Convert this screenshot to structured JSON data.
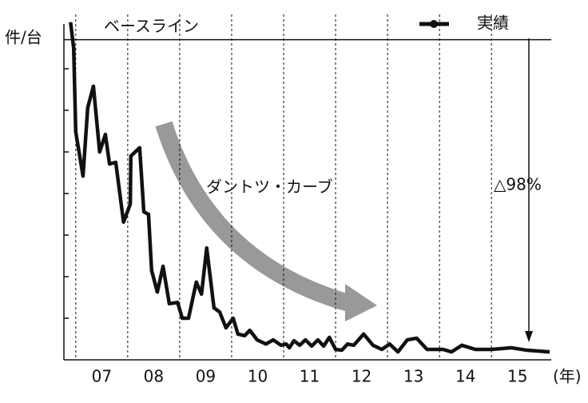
{
  "chart_data": {
    "type": "line",
    "y_label": "件/台",
    "x_label": "(年)",
    "baseline": {
      "label": "ベースライン",
      "value": 7.7
    },
    "annotations": [
      "ダントツ・カーブ",
      "△98%"
    ],
    "xlim": [
      6.88,
      16.15
    ],
    "ylim": [
      0,
      8.2
    ],
    "yticks": [
      1,
      2,
      3,
      4,
      5,
      6,
      7
    ],
    "xticks": [
      {
        "value": 7,
        "label": "07"
      },
      {
        "value": 8,
        "label": "08"
      },
      {
        "value": 9,
        "label": "09"
      },
      {
        "value": 10,
        "label": "10"
      },
      {
        "value": 11,
        "label": "11"
      },
      {
        "value": 12,
        "label": "12"
      },
      {
        "value": 13,
        "label": "13"
      },
      {
        "value": 14,
        "label": "14"
      },
      {
        "value": 15,
        "label": "15"
      }
    ],
    "legend": "top-right",
    "series": [
      {
        "name": "実績",
        "color": "#111111",
        "x": [
          6.9,
          6.96,
          7.0,
          7.14,
          7.23,
          7.34,
          7.46,
          7.57,
          7.65,
          7.77,
          7.92,
          8.05,
          8.06,
          8.23,
          8.31,
          8.4,
          8.46,
          8.57,
          8.68,
          8.8,
          8.96,
          9.05,
          9.17,
          9.32,
          9.42,
          9.52,
          9.66,
          9.77,
          9.89,
          10.03,
          10.12,
          10.25,
          10.35,
          10.49,
          10.66,
          10.8,
          10.95,
          11.05,
          11.11,
          11.2,
          11.31,
          11.42,
          11.54,
          11.66,
          11.77,
          11.88,
          12.0,
          12.12,
          12.23,
          12.35,
          12.54,
          12.72,
          12.89,
          13.04,
          13.2,
          13.38,
          13.56,
          13.76,
          14.07,
          14.23,
          14.43,
          14.69,
          15.0,
          15.38,
          15.69,
          16.12
        ],
        "values": [
          8.12,
          7.5,
          5.48,
          4.42,
          6.06,
          6.58,
          5.0,
          5.42,
          4.71,
          4.75,
          3.31,
          3.75,
          4.9,
          5.1,
          3.56,
          3.5,
          2.15,
          1.63,
          2.25,
          1.35,
          1.38,
          1.0,
          1.0,
          1.87,
          1.58,
          2.69,
          1.25,
          1.15,
          0.77,
          1.0,
          0.62,
          0.58,
          0.71,
          0.48,
          0.38,
          0.48,
          0.35,
          0.38,
          0.29,
          0.46,
          0.35,
          0.48,
          0.33,
          0.48,
          0.33,
          0.54,
          0.25,
          0.23,
          0.38,
          0.35,
          0.62,
          0.35,
          0.25,
          0.38,
          0.19,
          0.48,
          0.52,
          0.25,
          0.25,
          0.19,
          0.35,
          0.25,
          0.25,
          0.29,
          0.23,
          0.19
        ]
      }
    ]
  }
}
